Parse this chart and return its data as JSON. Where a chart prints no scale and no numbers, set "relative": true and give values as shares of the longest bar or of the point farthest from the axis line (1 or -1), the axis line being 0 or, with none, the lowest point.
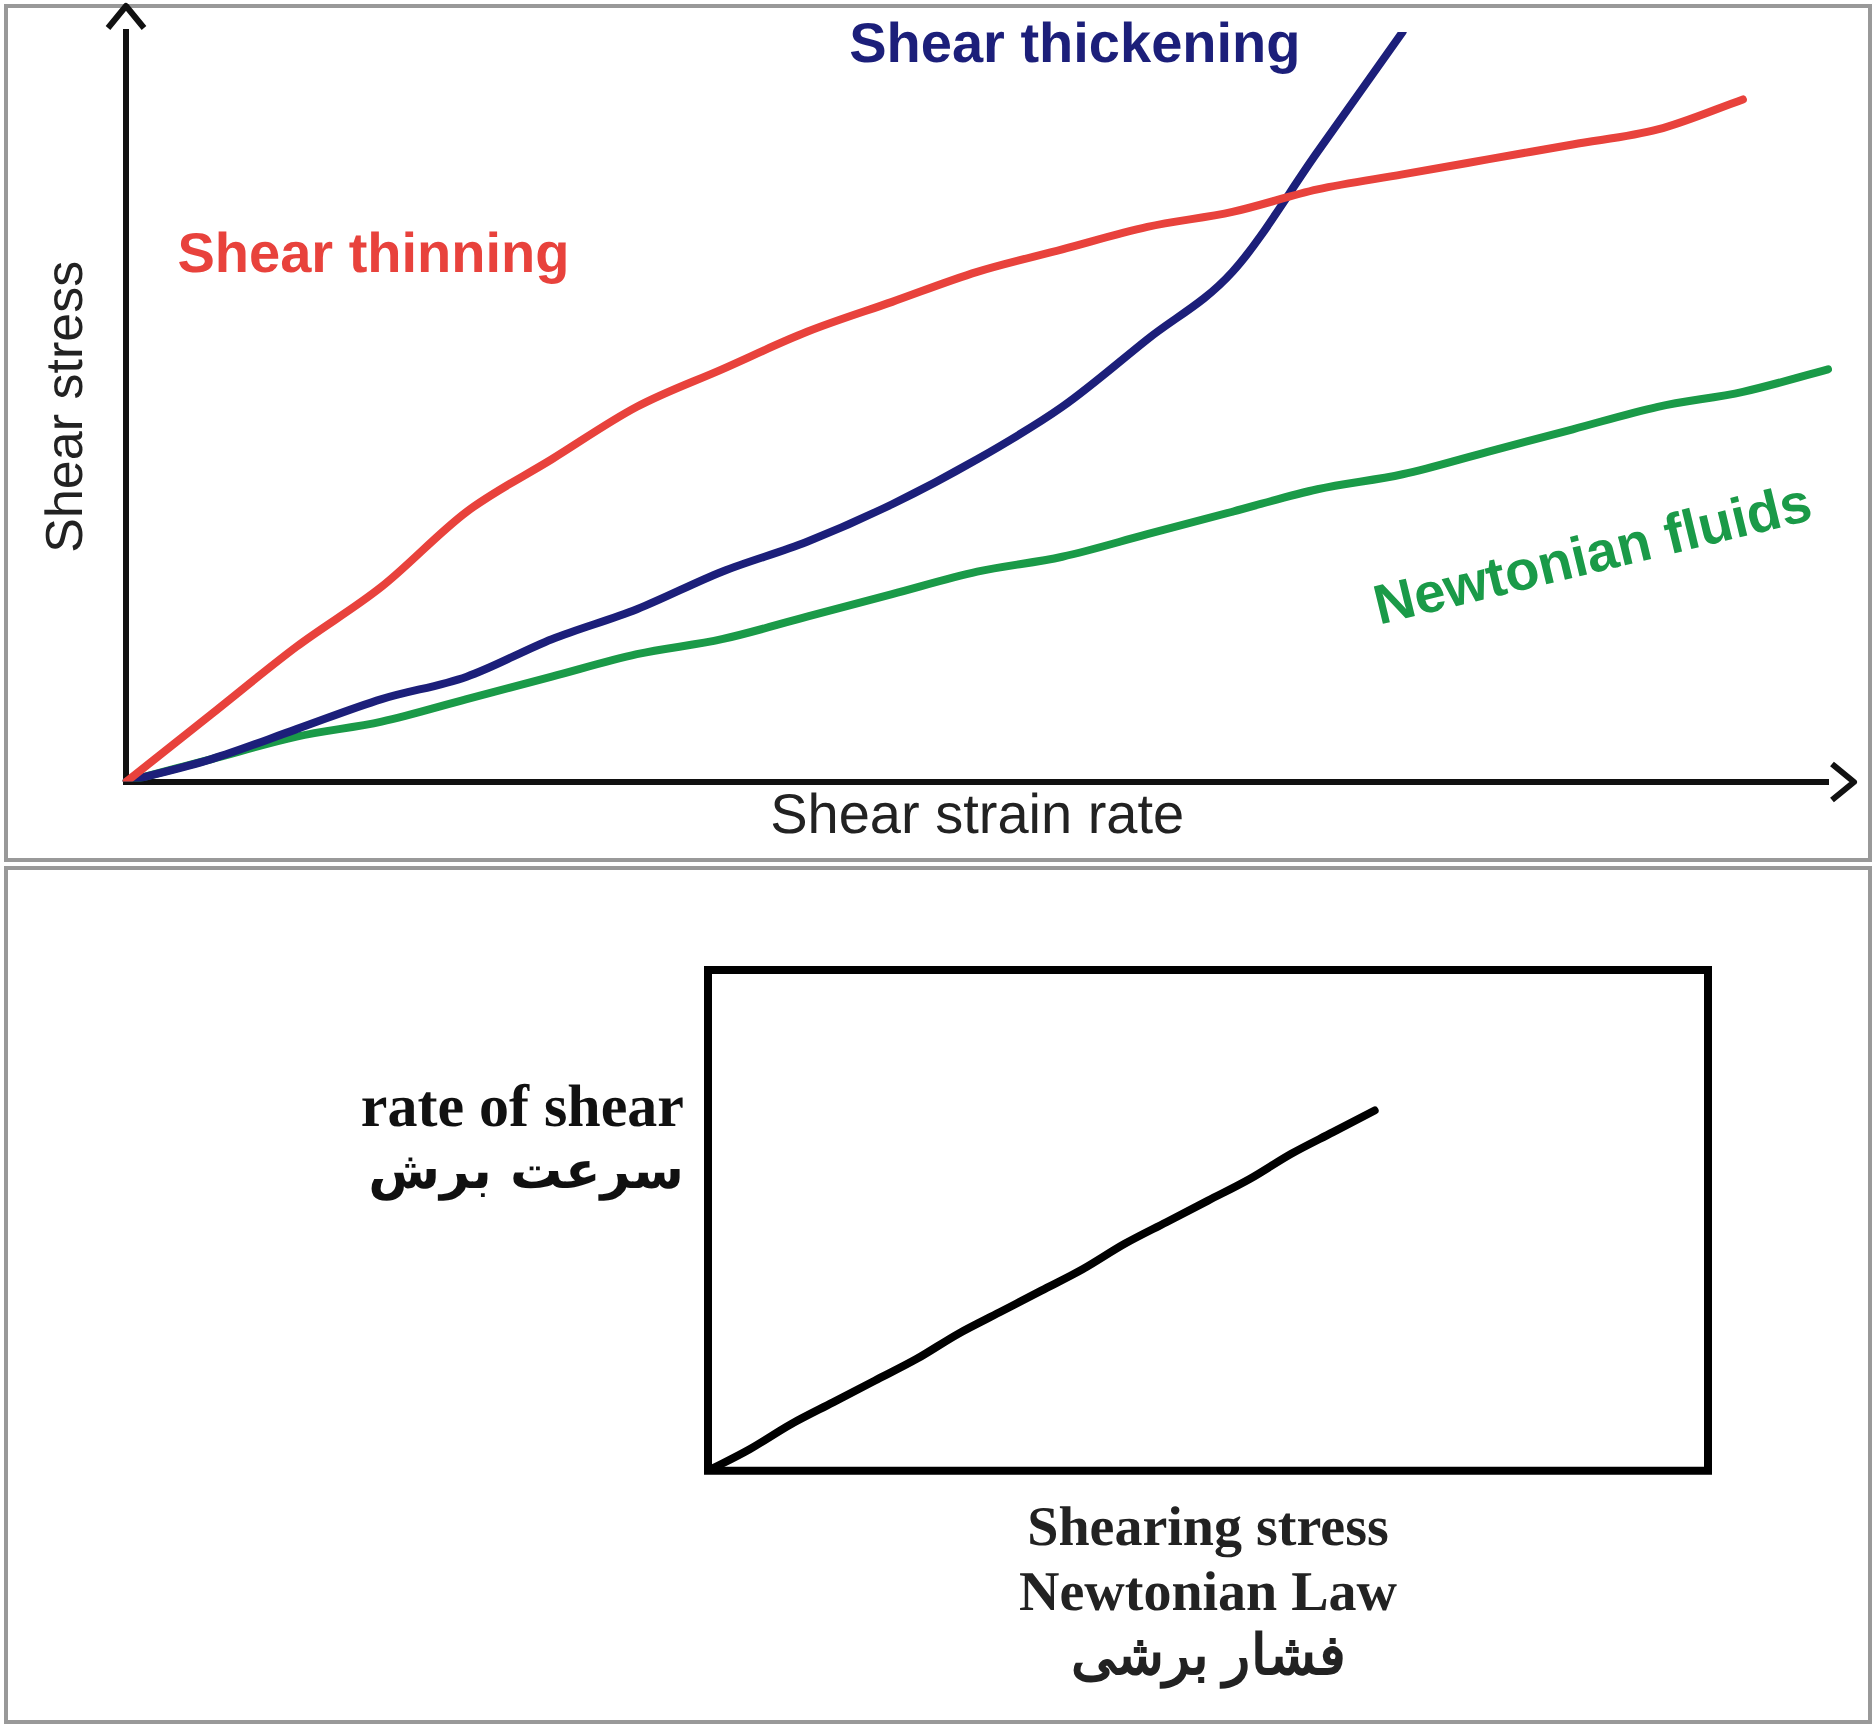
{
  "chart_data": [
    {
      "type": "line",
      "xlabel": "Shear strain rate",
      "ylabel": "Shear stress",
      "relative": true,
      "legend": false,
      "marker": "none",
      "grid": false,
      "tick_labels": false,
      "categories": [
        null,
        null,
        null,
        null,
        null,
        null,
        null,
        null,
        null,
        null,
        null,
        null,
        null,
        null,
        null,
        null,
        null,
        null,
        null,
        null,
        null
      ],
      "series": [
        {
          "name": "Shear thinning",
          "color": "#e8423c",
          "values": [
            0,
            0.09,
            0.18,
            0.26,
            0.36,
            0.43,
            0.5,
            0.55,
            0.6,
            0.64,
            0.68,
            0.71,
            0.74,
            0.76,
            0.79,
            0.81,
            0.83,
            0.85,
            0.87,
            0.91,
            null
          ]
        },
        {
          "name": "Shear thickening",
          "color": "#1c1f7a",
          "values": [
            0,
            0.03,
            0.07,
            0.11,
            0.14,
            0.19,
            0.23,
            0.28,
            0.32,
            0.37,
            0.43,
            0.5,
            0.59,
            0.68,
            0.84,
            1,
            null,
            null,
            null,
            null,
            null
          ]
        },
        {
          "name": "Newtonian fluids",
          "color": "#1a9a48",
          "values": [
            0,
            0.03,
            0.06,
            0.08,
            0.11,
            0.14,
            0.17,
            0.19,
            0.22,
            0.25,
            0.28,
            0.3,
            0.33,
            0.36,
            0.39,
            0.41,
            0.44,
            0.47,
            0.5,
            0.52,
            0.55
          ]
        }
      ]
    },
    {
      "type": "line",
      "xlabel": "Shearing stress\nNewtonian Law\nفشار برشی",
      "ylabel": "rate of shear\nسرعت برش",
      "relative": true,
      "legend": false,
      "marker": "none",
      "grid": false,
      "tick_labels": false,
      "categories": [
        null,
        null,
        null,
        null,
        null,
        null,
        null,
        null,
        null,
        null,
        null,
        null,
        null,
        null,
        null,
        null,
        null,
        null,
        null,
        null,
        null,
        null,
        null,
        null,
        null
      ],
      "series": [
        {
          "color": "#000000",
          "values": [
            0,
            0.06,
            0.13,
            0.19,
            0.25,
            0.31,
            0.38,
            0.44,
            0.5,
            0.56,
            0.63,
            0.69,
            0.75,
            0.81,
            0.88,
            0.94,
            1,
            null,
            null,
            null,
            null,
            null,
            null,
            null,
            null
          ]
        }
      ]
    }
  ]
}
